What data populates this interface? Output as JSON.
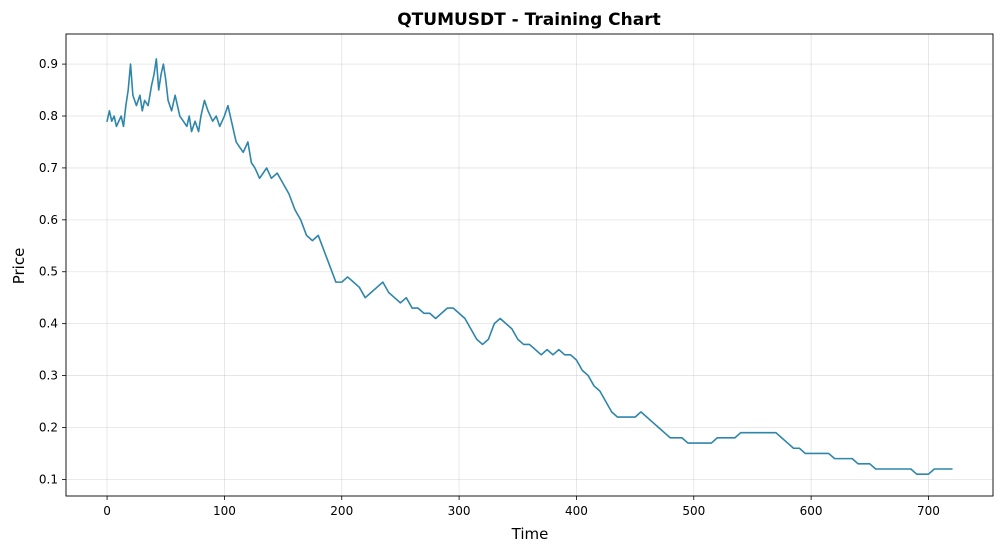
{
  "chart_data": {
    "type": "line",
    "title": "QTUMUSDT - Training Chart",
    "xlabel": "Time",
    "ylabel": "Price",
    "xlim": [
      -35,
      755
    ],
    "ylim": [
      0.068,
      0.958
    ],
    "xticks": [
      0,
      100,
      200,
      300,
      400,
      500,
      600,
      700
    ],
    "yticks": [
      0.1,
      0.2,
      0.3,
      0.4,
      0.5,
      0.6,
      0.7,
      0.8,
      0.9
    ],
    "xtick_labels": [
      "0",
      "100",
      "200",
      "300",
      "400",
      "500",
      "600",
      "700"
    ],
    "ytick_labels": [
      "0.1",
      "0.2",
      "0.3",
      "0.4",
      "0.5",
      "0.6",
      "0.7",
      "0.8",
      "0.9"
    ],
    "grid": true,
    "legend": "none",
    "series_color": "#2e86ab",
    "series": [
      {
        "x": [
          0,
          2,
          4,
          6,
          8,
          10,
          12,
          14,
          16,
          18,
          20,
          22,
          25,
          28,
          30,
          32,
          35,
          38,
          40,
          42,
          44,
          46,
          48,
          50,
          52,
          55,
          58,
          60,
          62,
          65,
          68,
          70,
          72,
          75,
          78,
          80,
          83,
          86,
          90,
          93,
          96,
          100,
          103,
          106,
          110,
          113,
          116,
          120,
          123,
          126,
          130,
          133,
          136,
          140,
          145,
          150,
          155,
          160,
          165,
          170,
          175,
          180,
          185,
          190,
          195,
          200,
          205,
          210,
          215,
          220,
          225,
          230,
          235,
          240,
          245,
          250,
          255,
          260,
          265,
          270,
          275,
          280,
          285,
          290,
          295,
          300,
          305,
          310,
          315,
          320,
          325,
          330,
          335,
          340,
          345,
          350,
          355,
          360,
          365,
          370,
          375,
          380,
          385,
          390,
          395,
          400,
          405,
          410,
          415,
          420,
          425,
          430,
          435,
          440,
          445,
          450,
          455,
          460,
          465,
          470,
          475,
          480,
          485,
          490,
          495,
          500,
          505,
          510,
          515,
          520,
          525,
          530,
          535,
          540,
          545,
          550,
          555,
          560,
          565,
          570,
          575,
          580,
          585,
          590,
          595,
          600,
          605,
          610,
          615,
          620,
          625,
          630,
          635,
          640,
          645,
          650,
          655,
          660,
          665,
          670,
          675,
          680,
          685,
          690,
          695,
          700,
          705,
          710,
          715,
          720
        ],
        "values": [
          0.79,
          0.81,
          0.79,
          0.8,
          0.78,
          0.79,
          0.8,
          0.78,
          0.82,
          0.85,
          0.9,
          0.84,
          0.82,
          0.84,
          0.81,
          0.83,
          0.82,
          0.86,
          0.88,
          0.91,
          0.85,
          0.88,
          0.9,
          0.87,
          0.83,
          0.81,
          0.84,
          0.82,
          0.8,
          0.79,
          0.78,
          0.8,
          0.77,
          0.79,
          0.77,
          0.8,
          0.83,
          0.81,
          0.79,
          0.8,
          0.78,
          0.8,
          0.82,
          0.79,
          0.75,
          0.74,
          0.73,
          0.75,
          0.71,
          0.7,
          0.68,
          0.69,
          0.7,
          0.68,
          0.69,
          0.67,
          0.65,
          0.62,
          0.6,
          0.57,
          0.56,
          0.57,
          0.54,
          0.51,
          0.48,
          0.48,
          0.49,
          0.48,
          0.47,
          0.45,
          0.46,
          0.47,
          0.48,
          0.46,
          0.45,
          0.44,
          0.45,
          0.43,
          0.43,
          0.42,
          0.42,
          0.41,
          0.42,
          0.43,
          0.43,
          0.42,
          0.41,
          0.39,
          0.37,
          0.36,
          0.37,
          0.4,
          0.41,
          0.4,
          0.39,
          0.37,
          0.36,
          0.36,
          0.35,
          0.34,
          0.35,
          0.34,
          0.35,
          0.34,
          0.34,
          0.33,
          0.31,
          0.3,
          0.28,
          0.27,
          0.25,
          0.23,
          0.22,
          0.22,
          0.22,
          0.22,
          0.23,
          0.22,
          0.21,
          0.2,
          0.19,
          0.18,
          0.18,
          0.18,
          0.17,
          0.17,
          0.17,
          0.17,
          0.17,
          0.18,
          0.18,
          0.18,
          0.18,
          0.19,
          0.19,
          0.19,
          0.19,
          0.19,
          0.19,
          0.19,
          0.18,
          0.17,
          0.16,
          0.16,
          0.15,
          0.15,
          0.15,
          0.15,
          0.15,
          0.14,
          0.14,
          0.14,
          0.14,
          0.13,
          0.13,
          0.13,
          0.12,
          0.12,
          0.12,
          0.12,
          0.12,
          0.12,
          0.12,
          0.11,
          0.11,
          0.11,
          0.12,
          0.12,
          0.12,
          0.12
        ]
      }
    ]
  }
}
